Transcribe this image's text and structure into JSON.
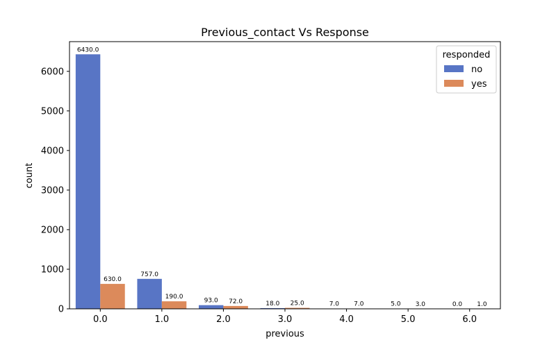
{
  "chart_data": {
    "type": "bar",
    "title": "Previous_contact Vs Response",
    "xlabel": "previous",
    "ylabel": "count",
    "categories": [
      "0.0",
      "1.0",
      "2.0",
      "3.0",
      "4.0",
      "5.0",
      "6.0"
    ],
    "series": [
      {
        "name": "no",
        "color": "#5875c5",
        "values": [
          6430.0,
          757.0,
          93.0,
          18.0,
          7.0,
          5.0,
          0.0
        ],
        "labels": [
          "6430.0",
          "757.0",
          "93.0",
          "18.0",
          "7.0",
          "5.0",
          "0.0"
        ]
      },
      {
        "name": "yes",
        "color": "#dc8a5b",
        "values": [
          630.0,
          190.0,
          72.0,
          25.0,
          7.0,
          3.0,
          1.0
        ],
        "labels": [
          "630.0",
          "190.0",
          "72.0",
          "25.0",
          "7.0",
          "3.0",
          "1.0"
        ]
      }
    ],
    "ylim": [
      0,
      6750
    ],
    "yticks": [
      0,
      1000,
      2000,
      3000,
      4000,
      5000,
      6000
    ],
    "ytick_labels": [
      "0",
      "1000",
      "2000",
      "3000",
      "4000",
      "5000",
      "6000"
    ],
    "legend": {
      "title": "responded",
      "placement": "top-right"
    },
    "grid": false
  }
}
